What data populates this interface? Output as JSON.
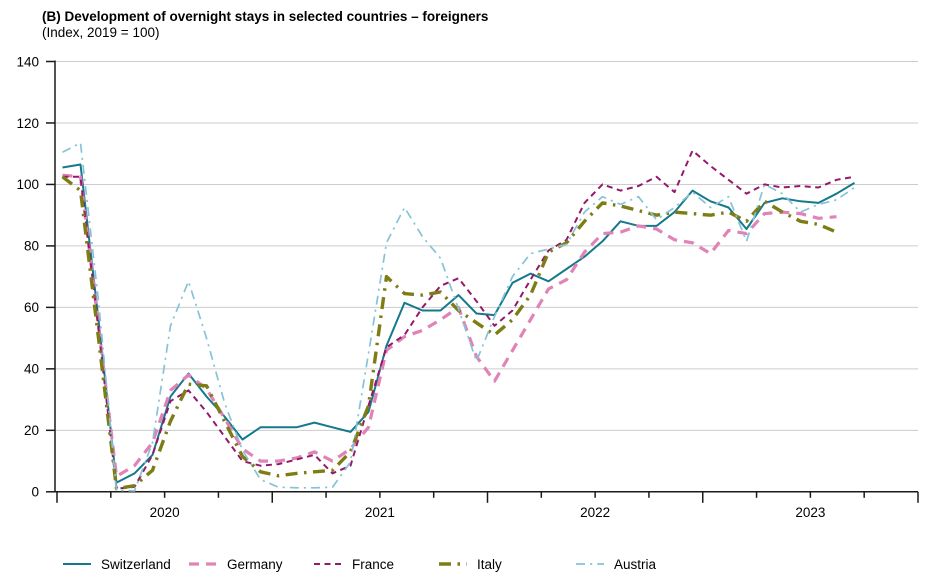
{
  "chart": {
    "title": "(B) Development of overnight stays in selected countries – foreigners",
    "subtitle": "(Index, 2019 = 100)"
  },
  "chart_data": {
    "type": "line",
    "title": "(B) Development of overnight stays in selected countries – foreigners",
    "subtitle": "(Index, 2019 = 100)",
    "x_unit": "month",
    "x_start": "2020-01",
    "x_end": "2023-09",
    "xlabel": "",
    "ylabel": "",
    "ylim": [
      0,
      140
    ],
    "ytick_step": 20,
    "grid": true,
    "legend_position": "bottom",
    "year_labels": [
      "2020",
      "2021",
      "2022",
      "2023"
    ],
    "axis_color": "#1a1a1a",
    "grid_color": "#cccccc",
    "series": [
      {
        "name": "Switzerland",
        "color": "#14798d",
        "line_style": "solid",
        "values": [
          105.5,
          106.5,
          56,
          3,
          6,
          12,
          31,
          38.5,
          31,
          24.5,
          17,
          21,
          21,
          21,
          22.5,
          21,
          19.5,
          26,
          47.5,
          61.5,
          59,
          59,
          64,
          58,
          57.5,
          68,
          71,
          68.5,
          72.5,
          76.5,
          81.5,
          88,
          86.5,
          86.5,
          91,
          98,
          94.5,
          92.5,
          85.5,
          94,
          95.5,
          94.5,
          94,
          97,
          100.5
        ]
      },
      {
        "name": "Germany",
        "color": "#e083b6",
        "line_style": "long-dash",
        "values": [
          103,
          102.5,
          54,
          5,
          8.5,
          16,
          33,
          38,
          33.5,
          24,
          14,
          10,
          10,
          11,
          13,
          10,
          14,
          21,
          46,
          50.5,
          52.5,
          56,
          60,
          44,
          36,
          46,
          56,
          66,
          69,
          78,
          84,
          84.5,
          86.5,
          85.5,
          82,
          81,
          77.5,
          85,
          84,
          90.5,
          91,
          90.5,
          89,
          89.5
        ]
      },
      {
        "name": "France",
        "color": "#93196b",
        "line_style": "short-dash",
        "values": [
          102.5,
          102.5,
          53,
          1,
          1.6,
          12,
          29.5,
          33,
          26,
          18,
          10,
          8.5,
          9,
          10.5,
          12,
          6,
          8.5,
          28,
          47,
          51,
          60,
          67,
          69.5,
          62,
          54,
          59,
          69,
          78.5,
          82,
          94,
          100,
          98,
          99.5,
          102.5,
          97.5,
          111,
          106,
          101.5,
          97,
          100,
          99,
          99.5,
          99,
          101.5,
          102.5
        ]
      },
      {
        "name": "Italy",
        "color": "#7d7d15",
        "line_style": "dash-dot",
        "values": [
          102.5,
          98,
          50,
          1,
          2,
          7,
          23,
          35,
          34.5,
          23,
          11.5,
          6.5,
          5.2,
          6,
          6.5,
          7,
          13,
          28,
          70,
          64.5,
          64,
          65,
          59,
          55,
          51,
          56,
          64,
          78,
          81,
          88,
          94,
          93,
          91.5,
          90,
          91,
          90.5,
          90,
          91,
          88,
          94.5,
          91,
          88,
          87,
          84.5
        ]
      },
      {
        "name": "Austria",
        "color": "#85c3d8",
        "line_style": "thin-dash-dot",
        "values": [
          110.5,
          113.5,
          62,
          0.5,
          0.3,
          16,
          54,
          68.5,
          50,
          29,
          13.5,
          4,
          1.5,
          1.3,
          1.3,
          1.5,
          9.7,
          45,
          81,
          92.5,
          83,
          76,
          59.5,
          42.5,
          57,
          70,
          77.5,
          79,
          80.5,
          91,
          96,
          93.5,
          96,
          88.5,
          92.5,
          97.5,
          92.5,
          96,
          81.5,
          100,
          97,
          91,
          93.5,
          95,
          99
        ]
      }
    ]
  }
}
